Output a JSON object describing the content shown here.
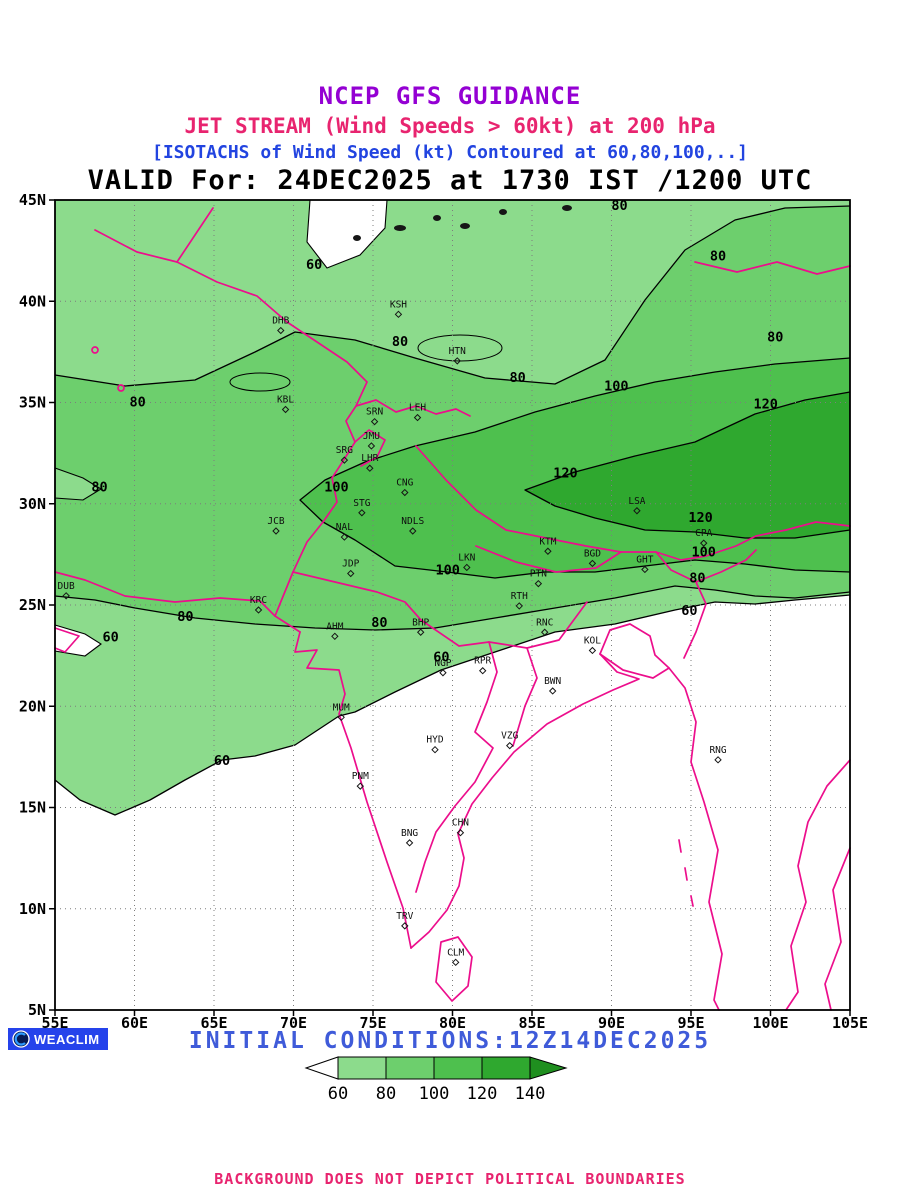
{
  "header": {
    "line1": "NCEP GFS GUIDANCE",
    "line2": "JET STREAM (Wind Speeds > 60kt) at 200 hPa",
    "line3": "[ISOTACHS of Wind Speed (kt) Contoured at 60,80,100,..]",
    "line4": "VALID For: 24DEC2025 at 1730 IST /1200 UTC"
  },
  "colors": {
    "title_purple": "#9400D3",
    "title_pink": "#E8246F",
    "title_blue": "#2244E0",
    "boundary_pink": "#EC0E8C",
    "initial_blue": "#3F5BD9",
    "badge_blue": "#2543EB",
    "greens": [
      "#8CDB8C",
      "#6DCF6D",
      "#4EC04E",
      "#2FA82F",
      "#1F8F1F"
    ]
  },
  "map": {
    "lat_ticks": [
      {
        "label": "45N",
        "lat": 45
      },
      {
        "label": "40N",
        "lat": 40
      },
      {
        "label": "35N",
        "lat": 35
      },
      {
        "label": "30N",
        "lat": 30
      },
      {
        "label": "25N",
        "lat": 25
      },
      {
        "label": "20N",
        "lat": 20
      },
      {
        "label": "15N",
        "lat": 15
      },
      {
        "label": "10N",
        "lat": 10
      },
      {
        "label": "5N",
        "lat": 5
      }
    ],
    "lon_ticks": [
      {
        "label": "55E",
        "lon": 55
      },
      {
        "label": "60E",
        "lon": 60
      },
      {
        "label": "65E",
        "lon": 65
      },
      {
        "label": "70E",
        "lon": 70
      },
      {
        "label": "75E",
        "lon": 75
      },
      {
        "label": "80E",
        "lon": 80
      },
      {
        "label": "85E",
        "lon": 85
      },
      {
        "label": "90E",
        "lon": 90
      },
      {
        "label": "95E",
        "lon": 95
      },
      {
        "label": "100E",
        "lon": 100
      },
      {
        "label": "105E",
        "lon": 105
      }
    ]
  },
  "chart_data": {
    "type": "heatmap",
    "subtype": "filled-isotach-contour-map",
    "title": "JET STREAM (Wind Speeds > 60kt) at 200 hPa",
    "subtitle": "ISOTACHS of Wind Speed (kt) Contoured at 60,80,100,..",
    "valid_time": "24DEC2025 at 1730 IST /1200 UTC",
    "initial_time": "12Z14DEC2025",
    "model": "NCEP GFS",
    "units": "kt",
    "extent": {
      "lon_min": 55,
      "lon_max": 105,
      "lat_min": 5,
      "lat_max": 45
    },
    "grid_interval_deg": 5,
    "contour_levels_kt": [
      60,
      80,
      100,
      120,
      140
    ],
    "jet_core_note": "Strongest winds >120 kt in a WSW-ENE band near 28-32N east of 85E (near LSA)",
    "isotach_labels": [
      {
        "kt": "80",
        "lon": 90.5,
        "lat": 44.7
      },
      {
        "kt": "80",
        "lon": 96.7,
        "lat": 42.2
      },
      {
        "kt": "60",
        "lon": 71.3,
        "lat": 41.8
      },
      {
        "kt": "80",
        "lon": 100.3,
        "lat": 38.2
      },
      {
        "kt": "80",
        "lon": 76.7,
        "lat": 38.0
      },
      {
        "kt": "80",
        "lon": 84.1,
        "lat": 36.2
      },
      {
        "kt": "100",
        "lon": 90.3,
        "lat": 35.8
      },
      {
        "kt": "120",
        "lon": 99.7,
        "lat": 34.9
      },
      {
        "kt": "80",
        "lon": 60.2,
        "lat": 35.0
      },
      {
        "kt": "100",
        "lon": 72.7,
        "lat": 30.8
      },
      {
        "kt": "80",
        "lon": 57.8,
        "lat": 30.8
      },
      {
        "kt": "120",
        "lon": 87.1,
        "lat": 31.5
      },
      {
        "kt": "120",
        "lon": 95.6,
        "lat": 29.3
      },
      {
        "kt": "100",
        "lon": 95.8,
        "lat": 27.6
      },
      {
        "kt": "100",
        "lon": 79.7,
        "lat": 26.7
      },
      {
        "kt": "80",
        "lon": 95.4,
        "lat": 26.3
      },
      {
        "kt": "60",
        "lon": 94.9,
        "lat": 24.7
      },
      {
        "kt": "80",
        "lon": 63.2,
        "lat": 24.4
      },
      {
        "kt": "80",
        "lon": 75.4,
        "lat": 24.1
      },
      {
        "kt": "60",
        "lon": 79.3,
        "lat": 22.4
      },
      {
        "kt": "60",
        "lon": 58.5,
        "lat": 23.4
      },
      {
        "kt": "60",
        "lon": 65.5,
        "lat": 17.3
      }
    ],
    "stations": [
      {
        "code": "DHB",
        "lon": 69.2,
        "lat": 38.9
      },
      {
        "code": "KSH",
        "lon": 76.6,
        "lat": 39.7
      },
      {
        "code": "HTN",
        "lon": 80.3,
        "lat": 37.4
      },
      {
        "code": "KBL",
        "lon": 69.5,
        "lat": 35.0
      },
      {
        "code": "LEH",
        "lon": 77.8,
        "lat": 34.6
      },
      {
        "code": "SRN",
        "lon": 75.1,
        "lat": 34.4
      },
      {
        "code": "JMU",
        "lon": 74.9,
        "lat": 33.2
      },
      {
        "code": "SRG",
        "lon": 73.2,
        "lat": 32.5
      },
      {
        "code": "LHR",
        "lon": 74.8,
        "lat": 32.1
      },
      {
        "code": "CNG",
        "lon": 77.0,
        "lat": 30.9
      },
      {
        "code": "STG",
        "lon": 74.3,
        "lat": 29.9
      },
      {
        "code": "NDLS",
        "lon": 77.5,
        "lat": 29.0
      },
      {
        "code": "JCB",
        "lon": 68.9,
        "lat": 29.0
      },
      {
        "code": "NAL",
        "lon": 73.2,
        "lat": 28.7
      },
      {
        "code": "JDP",
        "lon": 73.6,
        "lat": 26.9
      },
      {
        "code": "LKN",
        "lon": 80.9,
        "lat": 27.2
      },
      {
        "code": "KTM",
        "lon": 86.0,
        "lat": 28.0
      },
      {
        "code": "BGD",
        "lon": 88.8,
        "lat": 27.4
      },
      {
        "code": "GHT",
        "lon": 92.1,
        "lat": 27.1
      },
      {
        "code": "CPA",
        "lon": 95.8,
        "lat": 28.4
      },
      {
        "code": "LSA",
        "lon": 91.6,
        "lat": 30.0
      },
      {
        "code": "PTN",
        "lon": 85.4,
        "lat": 26.4
      },
      {
        "code": "RTH",
        "lon": 84.2,
        "lat": 25.3
      },
      {
        "code": "DUB",
        "lon": 55.7,
        "lat": 25.8
      },
      {
        "code": "KRC",
        "lon": 67.8,
        "lat": 25.1
      },
      {
        "code": "AHM",
        "lon": 72.6,
        "lat": 23.8
      },
      {
        "code": "BHP",
        "lon": 78.0,
        "lat": 24.0
      },
      {
        "code": "RNC",
        "lon": 85.8,
        "lat": 24.0
      },
      {
        "code": "KOL",
        "lon": 88.8,
        "lat": 23.1
      },
      {
        "code": "NGP",
        "lon": 79.4,
        "lat": 22.0
      },
      {
        "code": "RPR",
        "lon": 81.9,
        "lat": 22.1
      },
      {
        "code": "BWN",
        "lon": 86.3,
        "lat": 21.1
      },
      {
        "code": "MUM",
        "lon": 73.0,
        "lat": 19.8
      },
      {
        "code": "HYD",
        "lon": 78.9,
        "lat": 18.2
      },
      {
        "code": "VZG",
        "lon": 83.6,
        "lat": 18.4
      },
      {
        "code": "RNG",
        "lon": 96.7,
        "lat": 17.7
      },
      {
        "code": "PNM",
        "lon": 74.2,
        "lat": 16.4
      },
      {
        "code": "BNG",
        "lon": 77.3,
        "lat": 13.6
      },
      {
        "code": "CHN",
        "lon": 80.5,
        "lat": 14.1
      },
      {
        "code": "TRV",
        "lon": 77.0,
        "lat": 9.5
      },
      {
        "code": "CLM",
        "lon": 80.2,
        "lat": 7.7
      }
    ]
  },
  "footer": {
    "logo_text": "WEACLIM",
    "initial_conditions": "INITIAL CONDITIONS:12Z14DEC2025",
    "legend_values": [
      "60",
      "80",
      "100",
      "120",
      "140"
    ],
    "disclaimer": "BACKGROUND DOES NOT DEPICT POLITICAL BOUNDARIES"
  }
}
